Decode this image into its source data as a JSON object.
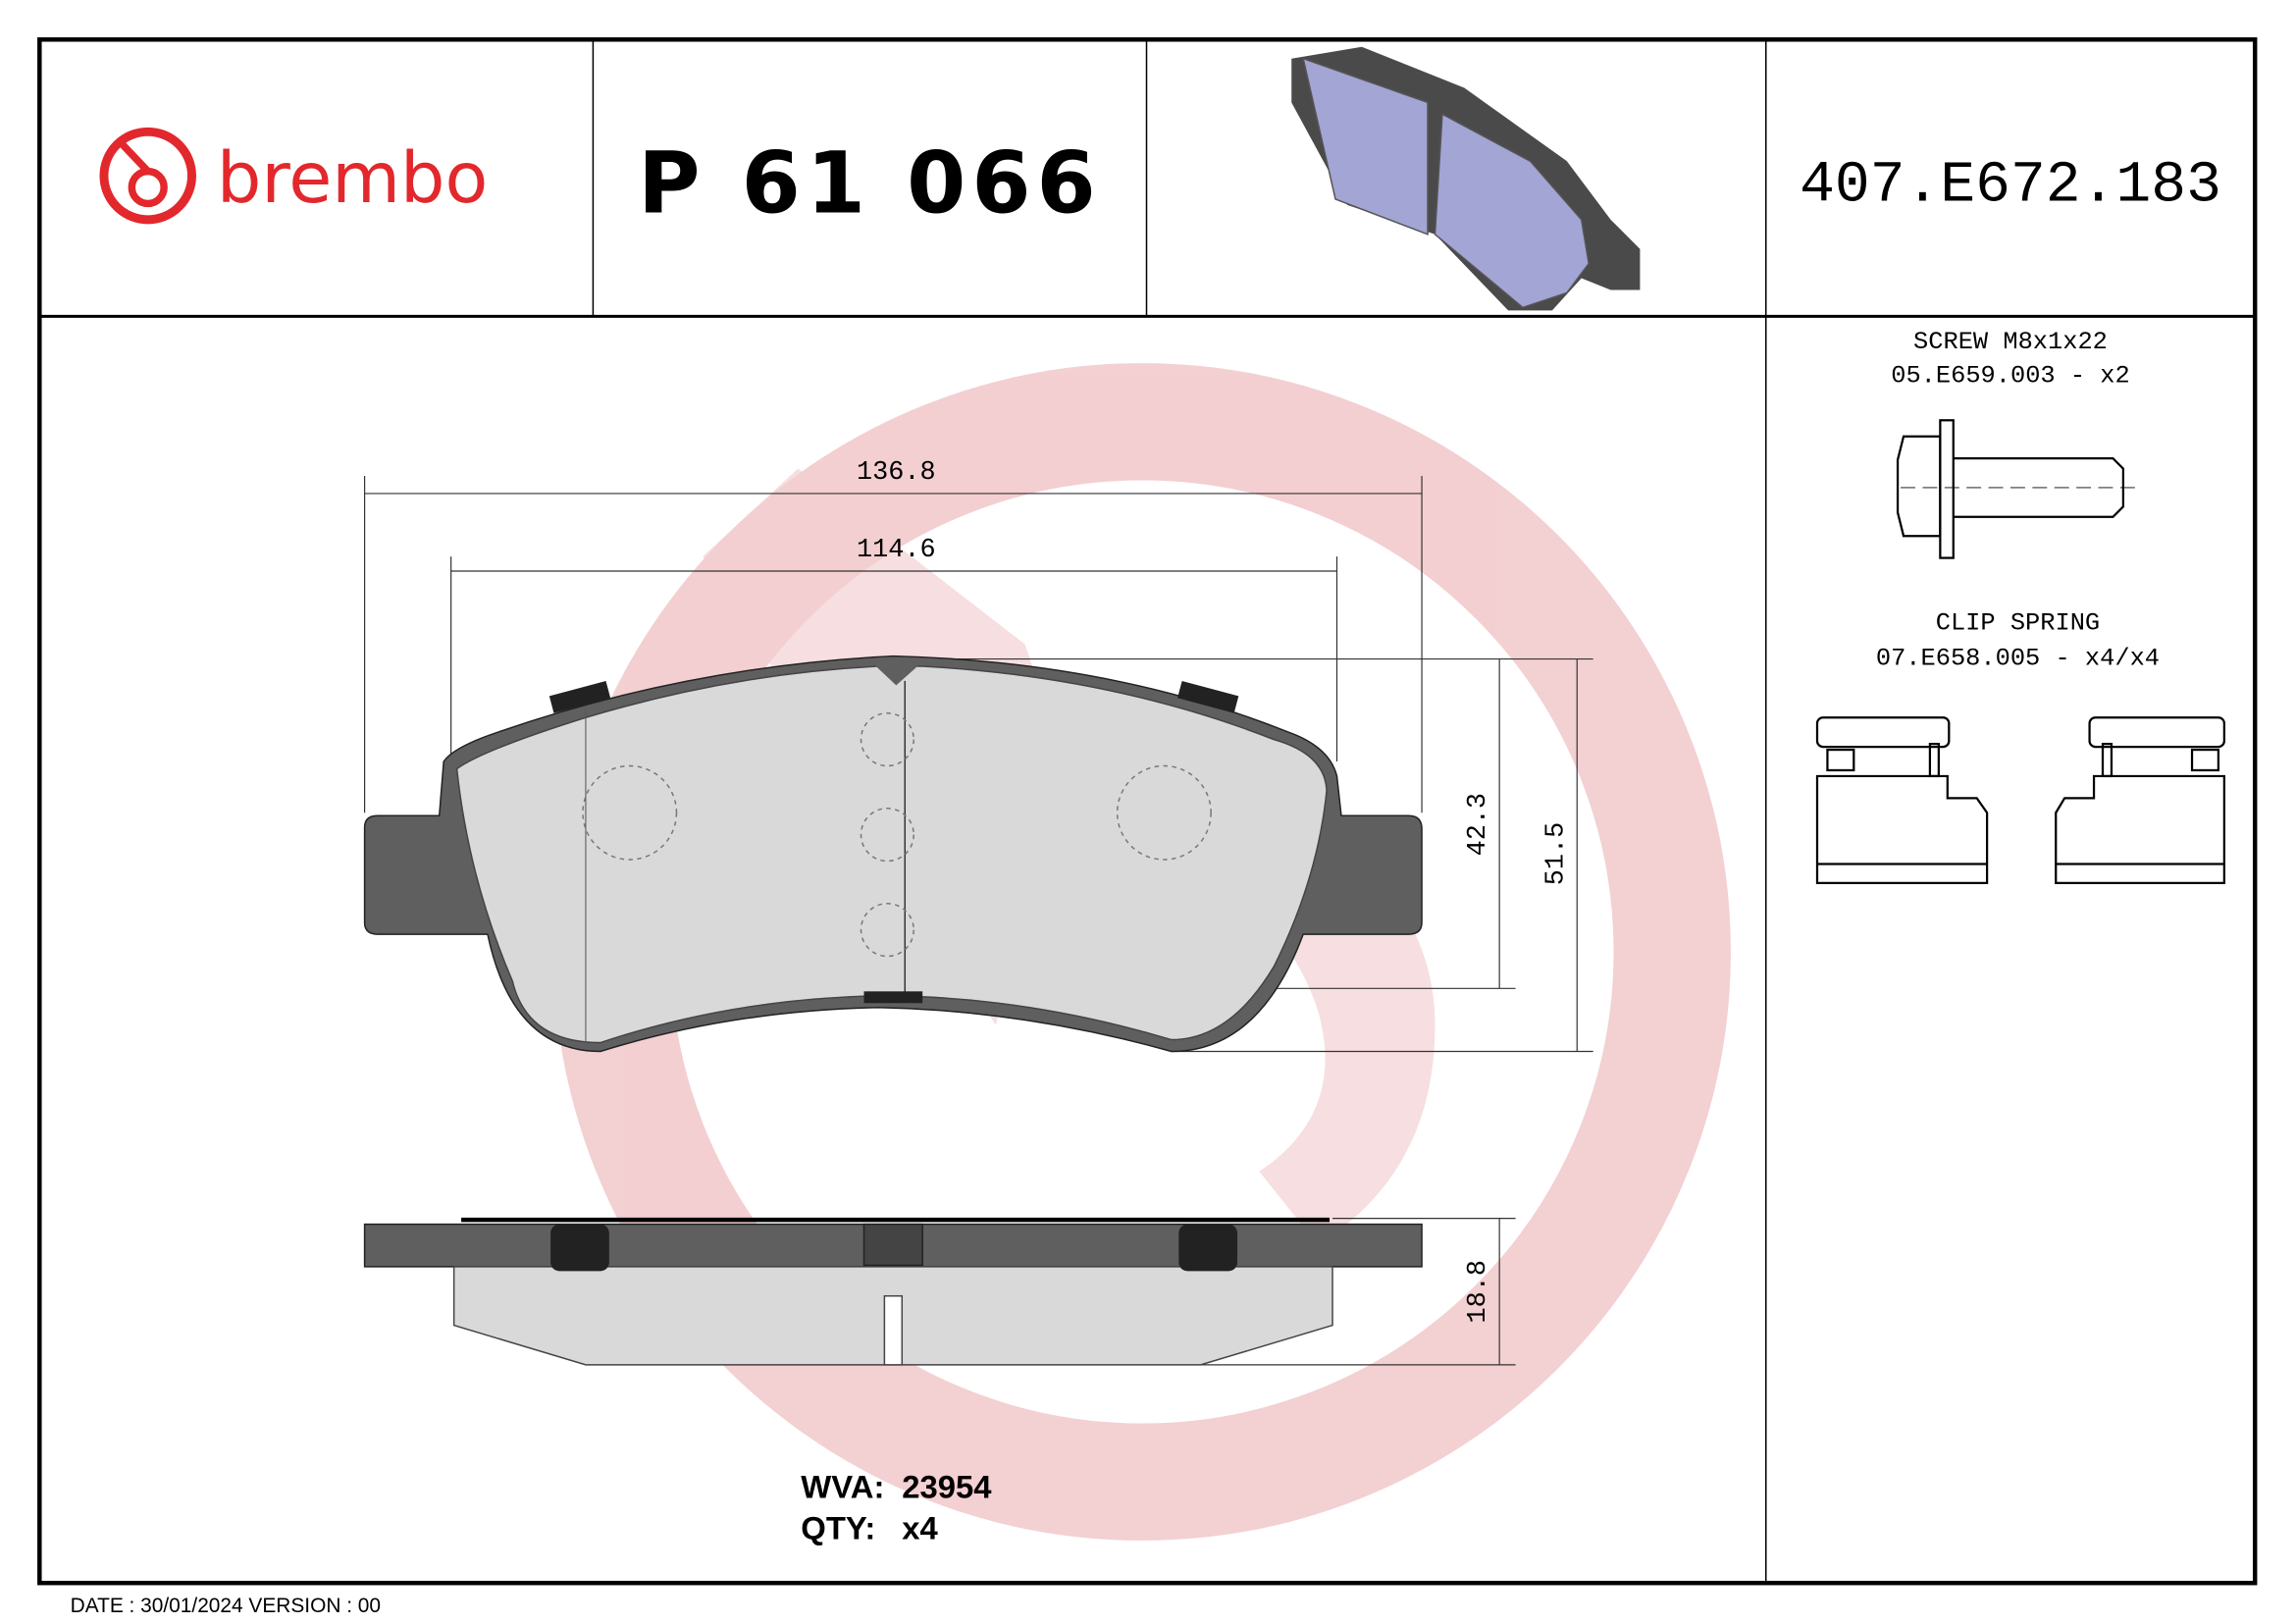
{
  "header": {
    "brand": "brembo",
    "part_number": "P 61 066",
    "drawing_number": "407.E672.183"
  },
  "dimensions": {
    "overall_width": "136.8",
    "friction_width": "114.6",
    "friction_height": "42.3",
    "overall_height": "51.5",
    "thickness": "18.8"
  },
  "accessories": [
    {
      "name": "SCREW M8x1x22",
      "code": "05.E659.003 - x2"
    },
    {
      "name": "CLIP SPRING",
      "code": "07.E658.005 - x4/x4"
    }
  ],
  "info": {
    "wva_label": "WVA:",
    "wva_value": "23954",
    "qty_label": "QTY:",
    "qty_value": "x4"
  },
  "footer": {
    "date_version": "DATE : 30/01/2024 VERSION : 00"
  },
  "colors": {
    "brand_red": "#e2282c",
    "watermark": "#f2c9cb",
    "backing_plate": "#5f5f5f",
    "friction": "#d9d9d9",
    "pad_render": "#a3a5d4"
  }
}
